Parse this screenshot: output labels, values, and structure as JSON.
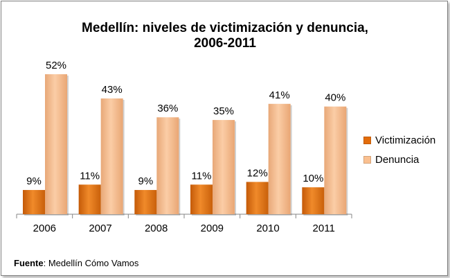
{
  "chart_data": {
    "type": "bar",
    "title_line1": "Medellín: niveles de victimización y denuncia,",
    "title_line2": "2006-2011",
    "categories": [
      "2006",
      "2007",
      "2008",
      "2009",
      "2010",
      "2011"
    ],
    "series": [
      {
        "name": "Victimización",
        "values": [
          9,
          11,
          9,
          11,
          12,
          10
        ],
        "labels": [
          "9%",
          "11%",
          "9%",
          "11%",
          "12%",
          "10%"
        ],
        "color": "#E36C0A"
      },
      {
        "name": "Denuncia",
        "values": [
          52,
          43,
          36,
          35,
          41,
          40
        ],
        "labels": [
          "52%",
          "43%",
          "36%",
          "35%",
          "41%",
          "40%"
        ],
        "color": "#FAC090"
      }
    ],
    "ylim": [
      0,
      60
    ],
    "legend_position": "right",
    "grid": false
  },
  "source": {
    "label": "Fuente",
    "text": ": Medellín Cómo Vamos"
  }
}
